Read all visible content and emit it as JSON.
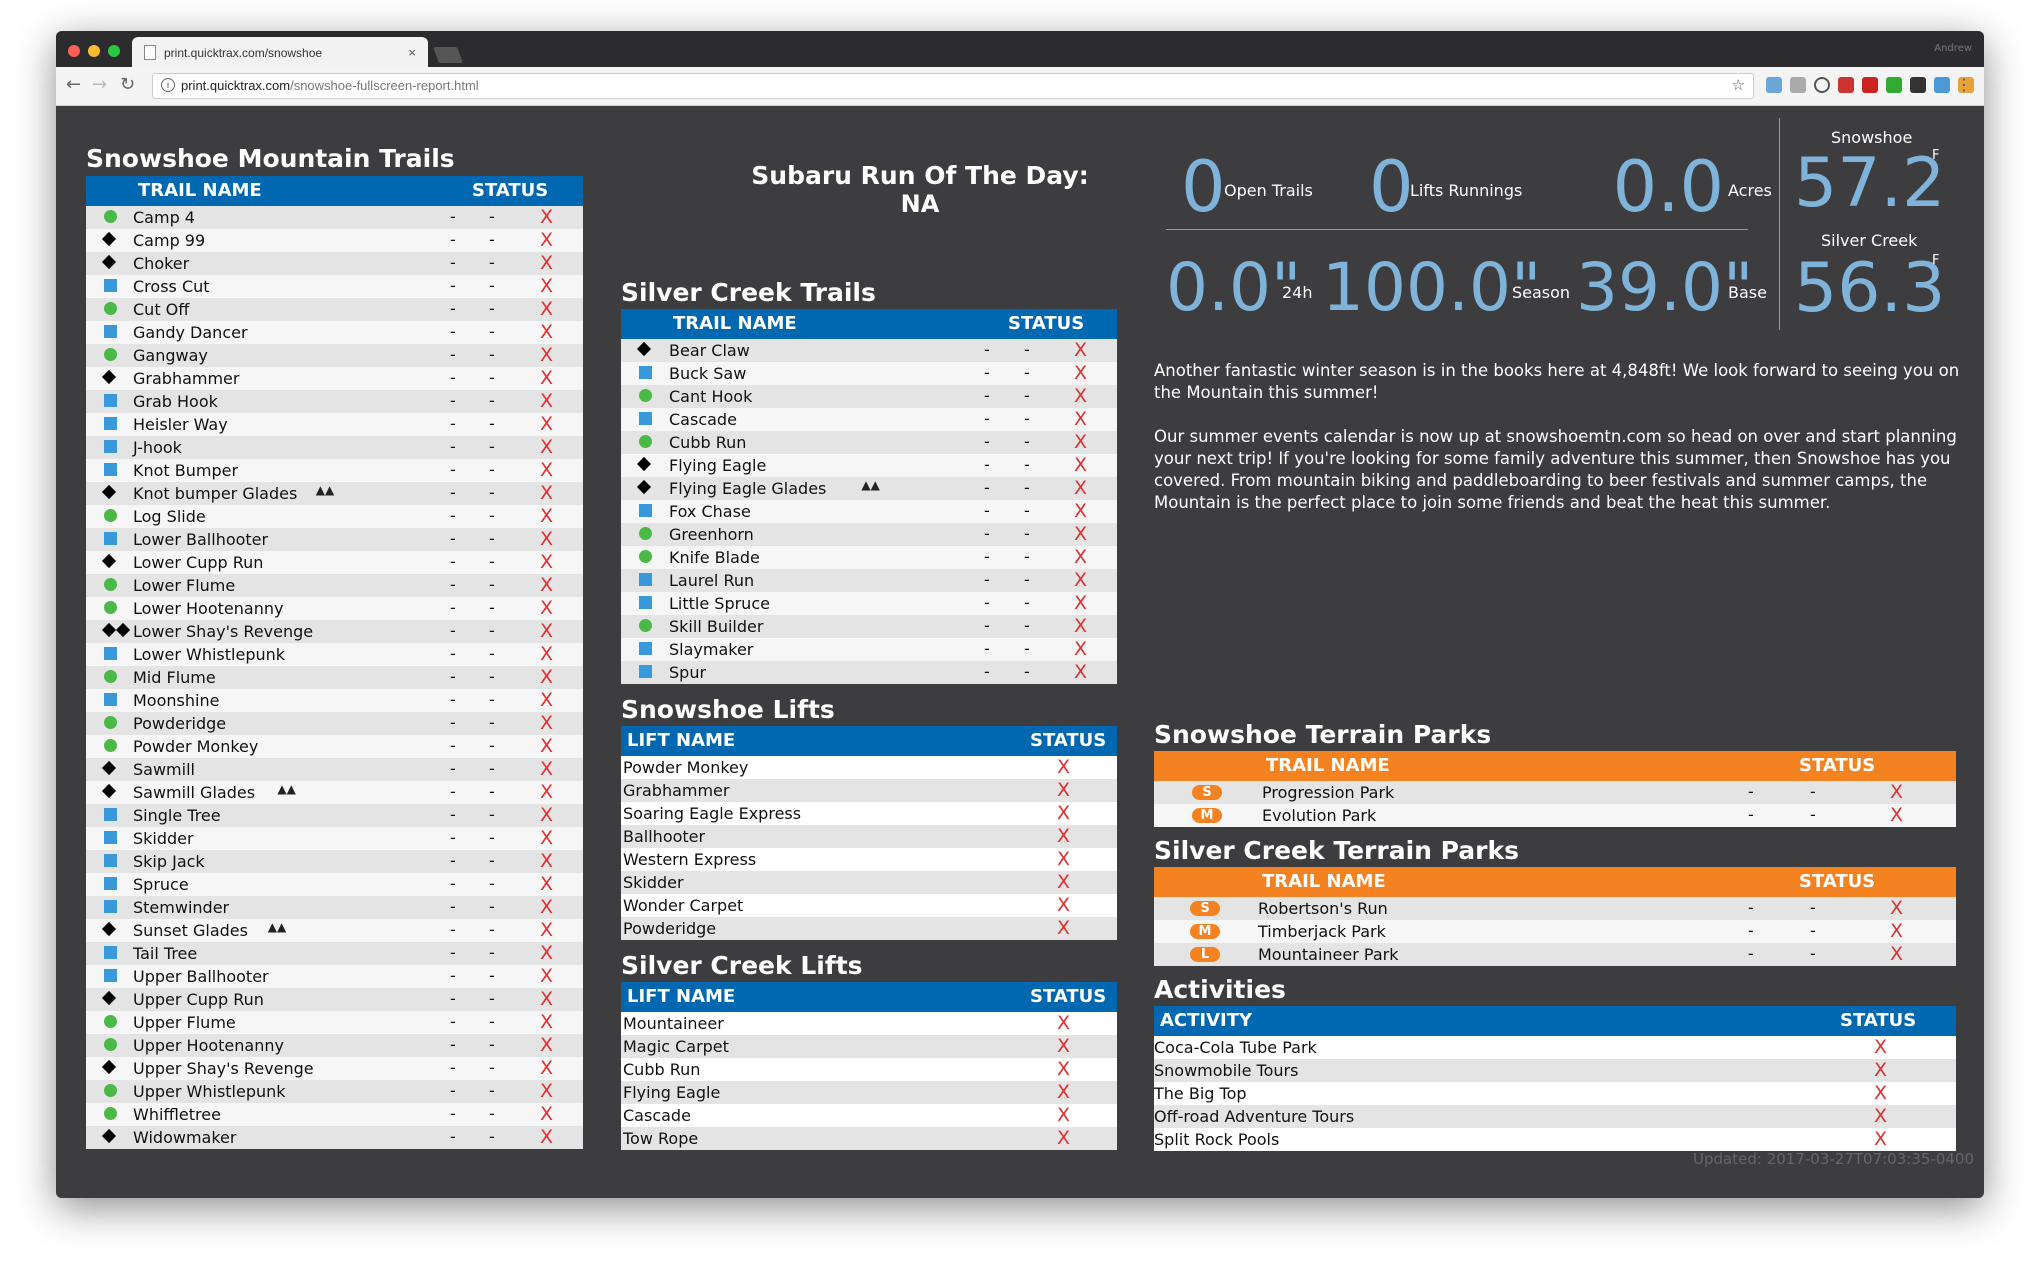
{
  "browser": {
    "tab_title": "print.quicktrax.com/snowshoe",
    "tab_close": "×",
    "url_host": "print.quicktrax.com",
    "url_path": "/snowshoe-fullscreen-report.html",
    "profile_name": "Andrew"
  },
  "snowshoe_trails": {
    "title": "Snowshoe Mountain Trails",
    "col_name": "TRAIL NAME",
    "col_status": "STATUS",
    "rows": [
      {
        "icon": "circle",
        "name": "Camp 4",
        "d1": "-",
        "d2": "-",
        "status": "X"
      },
      {
        "icon": "diamond",
        "name": "Camp 99",
        "d1": "-",
        "d2": "-",
        "status": "X"
      },
      {
        "icon": "diamond",
        "name": "Choker",
        "d1": "-",
        "d2": "-",
        "status": "X"
      },
      {
        "icon": "square",
        "name": "Cross Cut",
        "d1": "-",
        "d2": "-",
        "status": "X"
      },
      {
        "icon": "circle",
        "name": "Cut Off",
        "d1": "-",
        "d2": "-",
        "status": "X"
      },
      {
        "icon": "square",
        "name": "Gandy Dancer",
        "d1": "-",
        "d2": "-",
        "status": "X"
      },
      {
        "icon": "circle",
        "name": "Gangway",
        "d1": "-",
        "d2": "-",
        "status": "X"
      },
      {
        "icon": "diamond",
        "name": "Grabhammer",
        "d1": "-",
        "d2": "-",
        "status": "X"
      },
      {
        "icon": "square",
        "name": "Grab Hook",
        "d1": "-",
        "d2": "-",
        "status": "X"
      },
      {
        "icon": "square",
        "name": "Heisler Way",
        "d1": "-",
        "d2": "-",
        "status": "X"
      },
      {
        "icon": "square",
        "name": "J-hook",
        "d1": "-",
        "d2": "-",
        "status": "X"
      },
      {
        "icon": "square",
        "name": "Knot Bumper",
        "d1": "-",
        "d2": "-",
        "status": "X"
      },
      {
        "icon": "diamond",
        "name": "Knot bumper Glades",
        "glades": true,
        "d1": "-",
        "d2": "-",
        "status": "X"
      },
      {
        "icon": "circle",
        "name": "Log Slide",
        "d1": "-",
        "d2": "-",
        "status": "X"
      },
      {
        "icon": "square",
        "name": "Lower Ballhooter",
        "d1": "-",
        "d2": "-",
        "status": "X"
      },
      {
        "icon": "diamond",
        "name": "Lower Cupp Run",
        "d1": "-",
        "d2": "-",
        "status": "X"
      },
      {
        "icon": "circle",
        "name": "Lower Flume",
        "d1": "-",
        "d2": "-",
        "status": "X"
      },
      {
        "icon": "circle",
        "name": "Lower Hootenanny",
        "d1": "-",
        "d2": "-",
        "status": "X"
      },
      {
        "icon": "double-diamond",
        "name": "Lower Shay's Revenge",
        "d1": "-",
        "d2": "-",
        "status": "X"
      },
      {
        "icon": "square",
        "name": "Lower Whistlepunk",
        "d1": "-",
        "d2": "-",
        "status": "X"
      },
      {
        "icon": "circle",
        "name": "Mid Flume",
        "d1": "-",
        "d2": "-",
        "status": "X"
      },
      {
        "icon": "square",
        "name": "Moonshine",
        "d1": "-",
        "d2": "-",
        "status": "X"
      },
      {
        "icon": "circle",
        "name": "Powderidge",
        "d1": "-",
        "d2": "-",
        "status": "X"
      },
      {
        "icon": "circle",
        "name": "Powder Monkey",
        "d1": "-",
        "d2": "-",
        "status": "X"
      },
      {
        "icon": "diamond",
        "name": "Sawmill",
        "d1": "-",
        "d2": "-",
        "status": "X"
      },
      {
        "icon": "diamond",
        "name": "Sawmill Glades",
        "glades": true,
        "d1": "-",
        "d2": "-",
        "status": "X"
      },
      {
        "icon": "square",
        "name": "Single Tree",
        "d1": "-",
        "d2": "-",
        "status": "X"
      },
      {
        "icon": "square",
        "name": "Skidder",
        "d1": "-",
        "d2": "-",
        "status": "X"
      },
      {
        "icon": "square",
        "name": "Skip Jack",
        "d1": "-",
        "d2": "-",
        "status": "X"
      },
      {
        "icon": "square",
        "name": "Spruce",
        "d1": "-",
        "d2": "-",
        "status": "X"
      },
      {
        "icon": "square",
        "name": "Stemwinder",
        "d1": "-",
        "d2": "-",
        "status": "X"
      },
      {
        "icon": "diamond",
        "name": "Sunset Glades",
        "glades": true,
        "d1": "-",
        "d2": "-",
        "status": "X"
      },
      {
        "icon": "square",
        "name": "Tail Tree",
        "d1": "-",
        "d2": "-",
        "status": "X"
      },
      {
        "icon": "square",
        "name": "Upper Ballhooter",
        "d1": "-",
        "d2": "-",
        "status": "X"
      },
      {
        "icon": "diamond",
        "name": "Upper Cupp Run",
        "d1": "-",
        "d2": "-",
        "status": "X"
      },
      {
        "icon": "circle",
        "name": "Upper Flume",
        "d1": "-",
        "d2": "-",
        "status": "X"
      },
      {
        "icon": "circle",
        "name": "Upper Hootenanny",
        "d1": "-",
        "d2": "-",
        "status": "X"
      },
      {
        "icon": "diamond",
        "name": "Upper Shay's Revenge",
        "d1": "-",
        "d2": "-",
        "status": "X"
      },
      {
        "icon": "circle",
        "name": "Upper Whistlepunk",
        "d1": "-",
        "d2": "-",
        "status": "X"
      },
      {
        "icon": "circle",
        "name": "Whiffletree",
        "d1": "-",
        "d2": "-",
        "status": "X"
      },
      {
        "icon": "diamond",
        "name": "Widowmaker",
        "d1": "-",
        "d2": "-",
        "status": "X"
      }
    ]
  },
  "run_of_day": {
    "title": "Subaru Run Of The Day:",
    "value": "NA"
  },
  "silver_trails": {
    "title": "Silver Creek Trails",
    "col_name": "TRAIL NAME",
    "col_status": "STATUS",
    "rows": [
      {
        "icon": "diamond",
        "name": "Bear Claw",
        "d1": "-",
        "d2": "-",
        "status": "X"
      },
      {
        "icon": "square",
        "name": "Buck Saw",
        "d1": "-",
        "d2": "-",
        "status": "X"
      },
      {
        "icon": "circle",
        "name": "Cant Hook",
        "d1": "-",
        "d2": "-",
        "status": "X"
      },
      {
        "icon": "square",
        "name": "Cascade",
        "d1": "-",
        "d2": "-",
        "status": "X"
      },
      {
        "icon": "circle",
        "name": "Cubb Run",
        "d1": "-",
        "d2": "-",
        "status": "X"
      },
      {
        "icon": "diamond",
        "name": "Flying Eagle",
        "d1": "-",
        "d2": "-",
        "status": "X"
      },
      {
        "icon": "diamond",
        "name": "Flying Eagle Glades",
        "glades": true,
        "d1": "-",
        "d2": "-",
        "status": "X"
      },
      {
        "icon": "square",
        "name": "Fox Chase",
        "d1": "-",
        "d2": "-",
        "status": "X"
      },
      {
        "icon": "circle",
        "name": "Greenhorn",
        "d1": "-",
        "d2": "-",
        "status": "X"
      },
      {
        "icon": "circle",
        "name": "Knife Blade",
        "d1": "-",
        "d2": "-",
        "status": "X"
      },
      {
        "icon": "square",
        "name": "Laurel Run",
        "d1": "-",
        "d2": "-",
        "status": "X"
      },
      {
        "icon": "square",
        "name": "Little Spruce",
        "d1": "-",
        "d2": "-",
        "status": "X"
      },
      {
        "icon": "circle",
        "name": "Skill Builder",
        "d1": "-",
        "d2": "-",
        "status": "X"
      },
      {
        "icon": "square",
        "name": "Slaymaker",
        "d1": "-",
        "d2": "-",
        "status": "X"
      },
      {
        "icon": "square",
        "name": "Spur",
        "d1": "-",
        "d2": "-",
        "status": "X"
      }
    ]
  },
  "snowshoe_lifts": {
    "title": "Snowshoe Lifts",
    "col_name": "LIFT NAME",
    "col_status": "STATUS",
    "rows": [
      {
        "name": "Powder Monkey",
        "status": "X"
      },
      {
        "name": "Grabhammer",
        "status": "X"
      },
      {
        "name": "Soaring Eagle Express",
        "status": "X"
      },
      {
        "name": "Ballhooter",
        "status": "X"
      },
      {
        "name": "Western Express",
        "status": "X"
      },
      {
        "name": "Skidder",
        "status": "X"
      },
      {
        "name": "Wonder Carpet",
        "status": "X"
      },
      {
        "name": "Powderidge",
        "status": "X"
      }
    ]
  },
  "silver_lifts": {
    "title": "Silver Creek Lifts",
    "col_name": "LIFT NAME",
    "col_status": "STATUS",
    "rows": [
      {
        "name": "Mountaineer",
        "status": "X"
      },
      {
        "name": "Magic Carpet",
        "status": "X"
      },
      {
        "name": "Cubb Run",
        "status": "X"
      },
      {
        "name": "Flying Eagle",
        "status": "X"
      },
      {
        "name": "Cascade",
        "status": "X"
      },
      {
        "name": "Tow Rope",
        "status": "X"
      }
    ]
  },
  "stats": {
    "open_trails": {
      "value": "0",
      "label": "Open Trails"
    },
    "lifts_running": {
      "value": "0",
      "label": "Lifts Runnings"
    },
    "acres": {
      "value": "0.0",
      "label": "Acres"
    },
    "snow_24h": {
      "value": "0.0\"",
      "label": "24h"
    },
    "snow_season": {
      "value": "100.0\"",
      "label": "Season"
    },
    "snow_base": {
      "value": "39.0\"",
      "label": "Base"
    },
    "temp_snowshoe": {
      "label": "Snowshoe",
      "value": "57.2",
      "unit": "F"
    },
    "temp_silver": {
      "label": "Silver Creek",
      "value": "56.3",
      "unit": "F"
    }
  },
  "description": {
    "p1": "Another fantastic winter season is in the books here at 4,848ft! We look forward to seeing you on the Mountain this summer!",
    "p2": "Our summer events calendar is now up at snowshoemtn.com so head on over and start planning your next trip! If you're looking for some family adventure this summer, then Snowshoe has you covered. From mountain biking and paddleboarding to beer festivals and summer camps, the Mountain is the perfect place to join some friends and beat the heat this summer."
  },
  "snowshoe_parks": {
    "title": "Snowshoe Terrain Parks",
    "col_name": "TRAIL NAME",
    "col_status": "STATUS",
    "rows": [
      {
        "badge": "S",
        "name": "Progression Park",
        "d1": "-",
        "d2": "-",
        "status": "X"
      },
      {
        "badge": "M",
        "name": "Evolution Park",
        "d1": "-",
        "d2": "-",
        "status": "X"
      }
    ]
  },
  "silver_parks": {
    "title": "Silver Creek Terrain Parks",
    "col_name": "TRAIL NAME",
    "col_status": "STATUS",
    "rows": [
      {
        "badge": "S",
        "name": "Robertson's Run",
        "d1": "-",
        "d2": "-",
        "status": "X"
      },
      {
        "badge": "M",
        "name": "Timberjack Park",
        "d1": "-",
        "d2": "-",
        "status": "X"
      },
      {
        "badge": "L",
        "name": "Mountaineer Park",
        "d1": "-",
        "d2": "-",
        "status": "X"
      }
    ]
  },
  "activities": {
    "title": "Activities",
    "col_name": "ACTIVITY",
    "col_status": "STATUS",
    "rows": [
      {
        "name": "Coca-Cola Tube Park",
        "status": "X"
      },
      {
        "name": "Snowmobile Tours",
        "status": "X"
      },
      {
        "name": "The Big Top",
        "status": "X"
      },
      {
        "name": "Off-road Adventure Tours",
        "status": "X"
      },
      {
        "name": "Split Rock Pools",
        "status": "X"
      }
    ]
  },
  "updated": "Updated: 2017-03-27T07:03:35-0400",
  "colors": {
    "header_blue": "#0067b1",
    "header_orange": "#f58220",
    "x_red": "#e23030",
    "stat_blue": "#7fb3d9"
  }
}
